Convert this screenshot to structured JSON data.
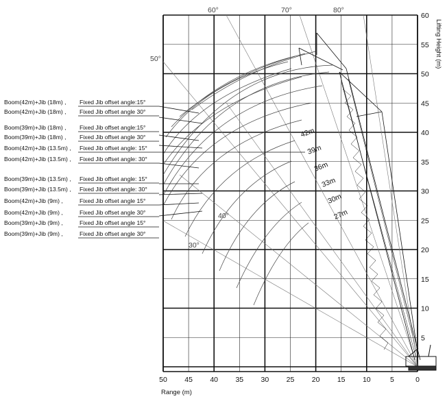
{
  "axes": {
    "x_title": "Range (m)",
    "y_title": "Lifting Height (m)",
    "x_ticks": [
      "50",
      "45",
      "40",
      "35",
      "30",
      "25",
      "20",
      "15",
      "10",
      "5",
      "0"
    ],
    "y_ticks": [
      "5",
      "10",
      "15",
      "20",
      "25",
      "30",
      "35",
      "40",
      "45",
      "50",
      "55",
      "60"
    ]
  },
  "angle_labels": [
    "60°",
    "70°",
    "80°",
    "50°",
    "40°",
    "30°"
  ],
  "curve_labels": [
    "42m",
    "39m",
    "36m",
    "33m",
    "30m",
    "27m"
  ],
  "legend": [
    {
      "boom": "Boom(42m)+Jib (18m) ,",
      "offset": "Fixed Jib offset angle:15°"
    },
    {
      "boom": "Boom(42m)+Jib (18m) ,",
      "offset": "Fixed Jib offset angle 30°"
    },
    {
      "boom": "Boom(39m)+Jib (18m) ,",
      "offset": "Fixed Jib offset angle:15°"
    },
    {
      "boom": "Boom(39m)+Jib (18m) ,",
      "offset": "Fixed Jib offset angle 30°"
    },
    {
      "boom": "Boom(42m)+Jib (13.5m) ,",
      "offset": "Fixed Jib offset angle: 15°"
    },
    {
      "boom": "Boom(42m)+Jib (13.5m) ,",
      "offset": "Fixed Jib offset angle: 30°"
    },
    {
      "boom": "Boom(39m)+Jib (13.5m) ,",
      "offset": "Fixed Jib offset angle: 15°"
    },
    {
      "boom": "Boom(39m)+Jib (13.5m) ,",
      "offset": "Fixed Jib offset angle: 30°"
    },
    {
      "boom": "Boom(42m)+Jib (9m) ,",
      "offset": "Fixed Jib offset angle 15°"
    },
    {
      "boom": "Boom(42m)+Jib (9m) ,",
      "offset": "Fixed Jib offset angle 30°"
    },
    {
      "boom": "Boom(39m)+Jib (9m) ,",
      "offset": "Fixed Jib offset angle 15°"
    },
    {
      "boom": "Boom(39m)+Jib (9m) ,",
      "offset": "Fixed Jib offset angle 30°"
    }
  ]
}
